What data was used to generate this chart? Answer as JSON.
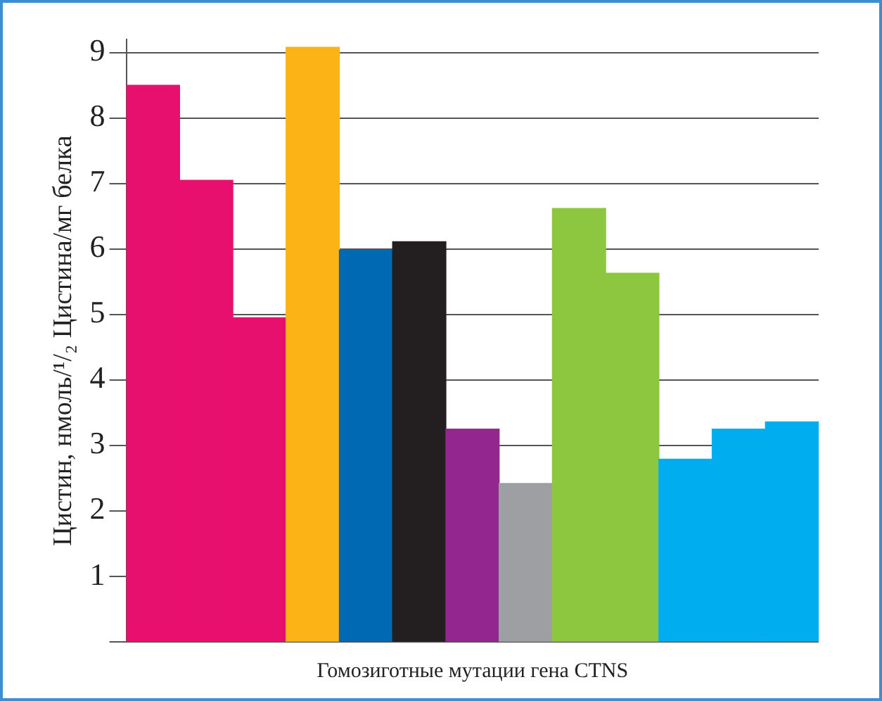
{
  "chart_data": {
    "type": "bar",
    "xlabel": "Гомозиготные мутации гена CTNS",
    "ylabel": "Цистин, нмоль/¹/₂ Цистина/мг белка",
    "categories": [
      null,
      null,
      null,
      null,
      null,
      null,
      null,
      null,
      null,
      null,
      null,
      null,
      null
    ],
    "values": [
      8.5,
      7.05,
      4.95,
      9.08,
      5.98,
      6.11,
      3.25,
      2.42,
      6.62,
      5.63,
      2.79,
      3.25,
      3.36
    ],
    "colors": [
      "#e8106e",
      "#e8106e",
      "#e8106e",
      "#fbb315",
      "#0069b4",
      "#231f20",
      "#93278f",
      "#9d9fa2",
      "#8dc63f",
      "#8dc63f",
      "#00aeef",
      "#00aeef",
      "#00aeef"
    ],
    "ylim": [
      0,
      9.2
    ],
    "yticks": [
      {
        "value": 0,
        "label": null
      },
      1,
      2,
      3,
      4,
      5,
      6,
      7,
      8,
      9
    ],
    "grid": "y",
    "tick_labels": "y"
  }
}
